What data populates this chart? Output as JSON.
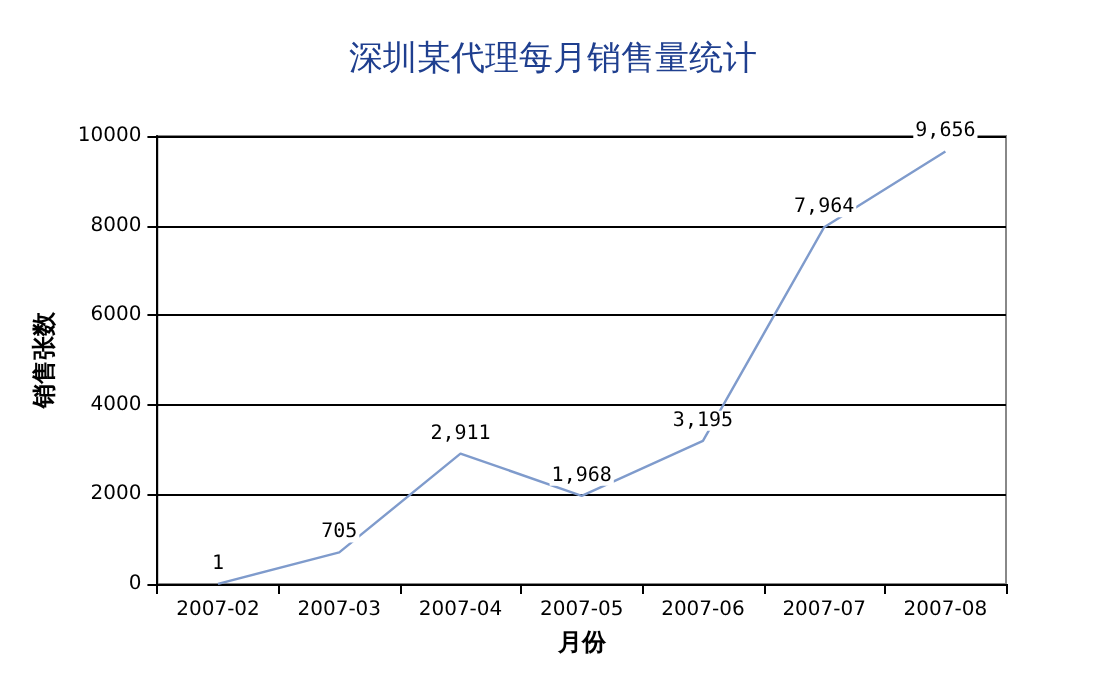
{
  "chart_data": {
    "type": "line",
    "title": "深圳某代理每月销售量统计",
    "xlabel": "月份",
    "ylabel": "销售张数",
    "categories": [
      "2007-02",
      "2007-03",
      "2007-04",
      "2007-05",
      "2007-06",
      "2007-07",
      "2007-08"
    ],
    "series": [
      {
        "color": "#7f9bcc",
        "values": [
          1,
          705,
          2911,
          1968,
          3195,
          7964,
          9656
        ],
        "value_labels": [
          "1",
          "705",
          "2,911",
          "1,968",
          "3,195",
          "7,964",
          "9,656"
        ]
      }
    ],
    "ylim": [
      0,
      10000
    ],
    "yticks": [
      0,
      2000,
      4000,
      6000,
      8000,
      10000
    ],
    "grid": "y",
    "marker": "none",
    "line_style": "solid"
  }
}
